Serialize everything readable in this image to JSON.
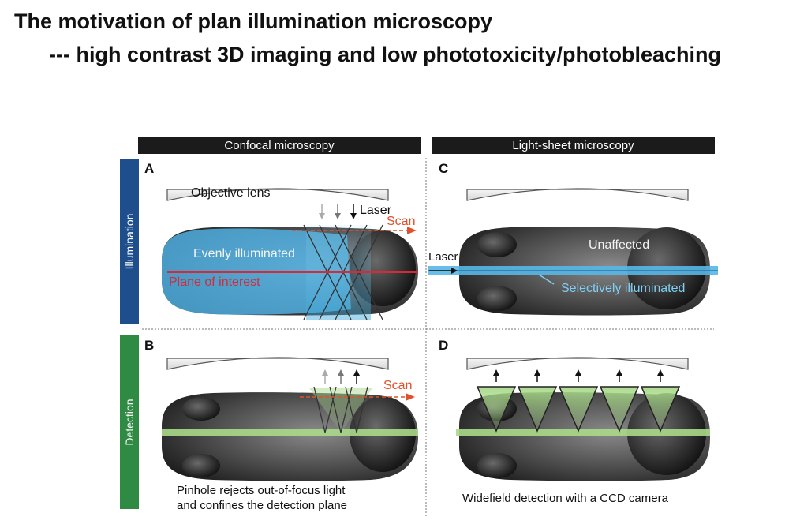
{
  "slide": {
    "title": "The motivation of plan illumination microscopy",
    "subtitle": "--- high contrast 3D imaging and low phototoxicity/photobleaching"
  },
  "figure": {
    "columns": {
      "left": "Confocal microscopy",
      "right": "Light-sheet microscopy"
    },
    "rows": {
      "top": "Illumination",
      "bottom": "Detection"
    },
    "panels": {
      "A": {
        "letter": "A",
        "lens_label": "Objective lens",
        "laser_label": "Laser",
        "scan_label": "Scan",
        "region_label": "Evenly illuminated",
        "plane_label": "Plane of interest"
      },
      "B": {
        "letter": "B",
        "scan_label": "Scan",
        "caption_line1": "Pinhole rejects out-of-focus light",
        "caption_line2": "and confines the detection plane"
      },
      "C": {
        "letter": "C",
        "laser_label": "Laser",
        "unaffected_label": "Unaffected",
        "selective_label": "Selectively illuminated"
      },
      "D": {
        "letter": "D",
        "caption": "Widefield detection with a CCD camera"
      }
    },
    "colors": {
      "illumination_bar": "#1f4e8c",
      "detection_bar": "#2f8a44",
      "laser_red": "#e0502a",
      "light_blue": "#58b7e6",
      "light_green": "#a9d98a"
    }
  }
}
